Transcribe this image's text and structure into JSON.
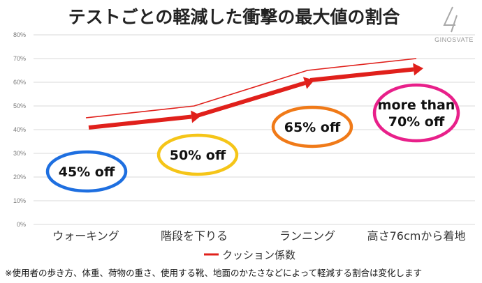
{
  "chart_data": {
    "type": "line",
    "title": "テストごとの軽減した衝撃の最大値の割合",
    "categories": [
      "ウォーキング",
      "階段を下りる",
      "ランニング",
      "高さ76cmから着地"
    ],
    "series": [
      {
        "name": "クッション係数",
        "values": [
          45,
          50,
          65,
          70
        ],
        "color": "#e0201b"
      }
    ],
    "ylim": [
      0,
      80
    ],
    "yticks": [
      "0%",
      "10%",
      "20%",
      "30%",
      "40%",
      "50%",
      "60%",
      "70%",
      "80%"
    ],
    "grid": true,
    "legend": "bottom",
    "annotations": [
      {
        "lines": [
          "45% off"
        ],
        "color": "#1e6fe0",
        "category": 0
      },
      {
        "lines": [
          "50% off"
        ],
        "color": "#f5c518",
        "category": 1
      },
      {
        "lines": [
          "65% off"
        ],
        "color": "#f07a18",
        "category": 2
      },
      {
        "lines": [
          "more than",
          "70% off"
        ],
        "color": "#e8208a",
        "category": 3
      }
    ]
  },
  "brand": {
    "name": "GINOSVATE",
    "mark": "4/7"
  },
  "footnote": "※使用者の歩き方、体重、荷物の重さ、使用する靴、地面のかたさなどによって軽減する割合は変化します",
  "colors": {
    "arrow": "#e0201b",
    "grid": "#d9d9d9"
  }
}
